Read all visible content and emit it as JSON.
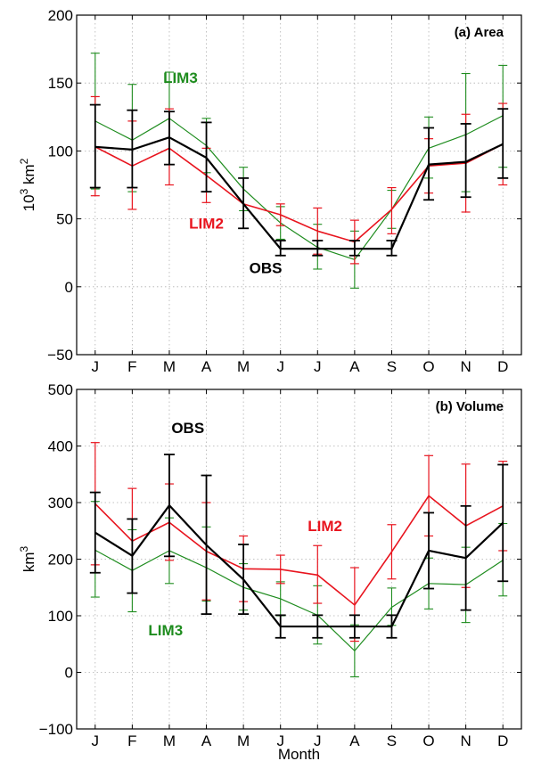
{
  "chart_data": [
    {
      "type": "line",
      "panel_label": "(a) Area",
      "ylabel_base": "10",
      "ylabel_sup": "3",
      "ylabel_unit": "km",
      "ylabel_unit_sup": "2",
      "xlabel": "",
      "ylim": [
        -50,
        200
      ],
      "yticks": [
        -50,
        0,
        50,
        100,
        150,
        200
      ],
      "categories": [
        "J",
        "F",
        "M",
        "A",
        "M",
        "J",
        "J",
        "A",
        "S",
        "O",
        "N",
        "D"
      ],
      "grid": true,
      "series": [
        {
          "name": "LIM3",
          "color": "#1e8c1e",
          "values": [
            122,
            108,
            124,
            104,
            72,
            47,
            29,
            20,
            57,
            102,
            112,
            126
          ],
          "err_low": [
            72,
            70,
            90,
            84,
            56,
            35,
            13,
            -1,
            43,
            80,
            70,
            88
          ],
          "err_high": [
            172,
            149,
            158,
            124,
            88,
            59,
            46,
            41,
            71,
            125,
            157,
            163
          ]
        },
        {
          "name": "LIM2",
          "color": "#e8141e",
          "values": [
            103,
            89,
            102,
            82,
            61,
            53,
            41,
            33,
            57,
            89,
            91,
            105
          ],
          "err_low": [
            67,
            57,
            75,
            62,
            43,
            45,
            24,
            17,
            39,
            69,
            55,
            75
          ],
          "err_high": [
            140,
            122,
            131,
            102,
            80,
            61,
            58,
            49,
            73,
            109,
            127,
            135
          ]
        },
        {
          "name": "OBS",
          "color": "#000000",
          "values": [
            103,
            101,
            110,
            95,
            61,
            28,
            28,
            28,
            28,
            90,
            92,
            105
          ],
          "err_low": [
            73,
            73,
            90,
            70,
            43,
            23,
            23,
            23,
            23,
            64,
            66,
            80
          ],
          "err_high": [
            134,
            130,
            129,
            121,
            80,
            34,
            34,
            34,
            34,
            117,
            120,
            131
          ]
        }
      ],
      "annotations": [
        {
          "text": "LIM3",
          "color": "#1e8c1e",
          "x": 2.3,
          "y": 150
        },
        {
          "text": "LIM2",
          "color": "#e8141e",
          "x": 3.0,
          "y": 43
        },
        {
          "text": "OBS",
          "color": "#000000",
          "x": 4.6,
          "y": 10
        }
      ]
    },
    {
      "type": "line",
      "panel_label": "(b) Volume",
      "ylabel_base": "km",
      "ylabel_sup": "3",
      "ylabel_unit": "",
      "ylabel_unit_sup": "",
      "xlabel": "Month",
      "ylim": [
        -100,
        500
      ],
      "yticks": [
        -100,
        0,
        100,
        200,
        300,
        400,
        500
      ],
      "categories": [
        "J",
        "F",
        "M",
        "A",
        "M",
        "J",
        "J",
        "A",
        "S",
        "O",
        "N",
        "D"
      ],
      "grid": true,
      "series": [
        {
          "name": "LIM3",
          "color": "#1e8c1e",
          "values": [
            216,
            180,
            215,
            185,
            150,
            130,
            101,
            38,
            115,
            157,
            155,
            198
          ],
          "err_low": [
            133,
            107,
            157,
            126,
            110,
            100,
            50,
            -8,
            83,
            112,
            88,
            135
          ],
          "err_high": [
            302,
            252,
            273,
            257,
            192,
            160,
            153,
            84,
            149,
            202,
            221,
            263
          ]
        },
        {
          "name": "LIM2",
          "color": "#e8141e",
          "values": [
            298,
            232,
            265,
            214,
            183,
            182,
            172,
            119,
            213,
            312,
            259,
            294
          ],
          "err_low": [
            190,
            140,
            198,
            128,
            125,
            157,
            122,
            55,
            165,
            241,
            150,
            215
          ],
          "err_high": [
            406,
            325,
            333,
            300,
            241,
            207,
            224,
            185,
            261,
            383,
            368,
            373
          ]
        },
        {
          "name": "OBS",
          "color": "#000000",
          "values": [
            247,
            206,
            295,
            225,
            164,
            81,
            81,
            81,
            81,
            215,
            202,
            264
          ],
          "err_low": [
            176,
            140,
            205,
            103,
            103,
            61,
            61,
            61,
            61,
            148,
            110,
            161
          ],
          "err_high": [
            318,
            271,
            385,
            348,
            226,
            101,
            101,
            101,
            101,
            282,
            294,
            367
          ]
        }
      ],
      "annotations": [
        {
          "text": "OBS",
          "color": "#000000",
          "x": 2.5,
          "y": 423
        },
        {
          "text": "LIM2",
          "color": "#e8141e",
          "x": 6.2,
          "y": 250
        },
        {
          "text": "LIM3",
          "color": "#1e8c1e",
          "x": 1.9,
          "y": 65
        }
      ]
    }
  ]
}
